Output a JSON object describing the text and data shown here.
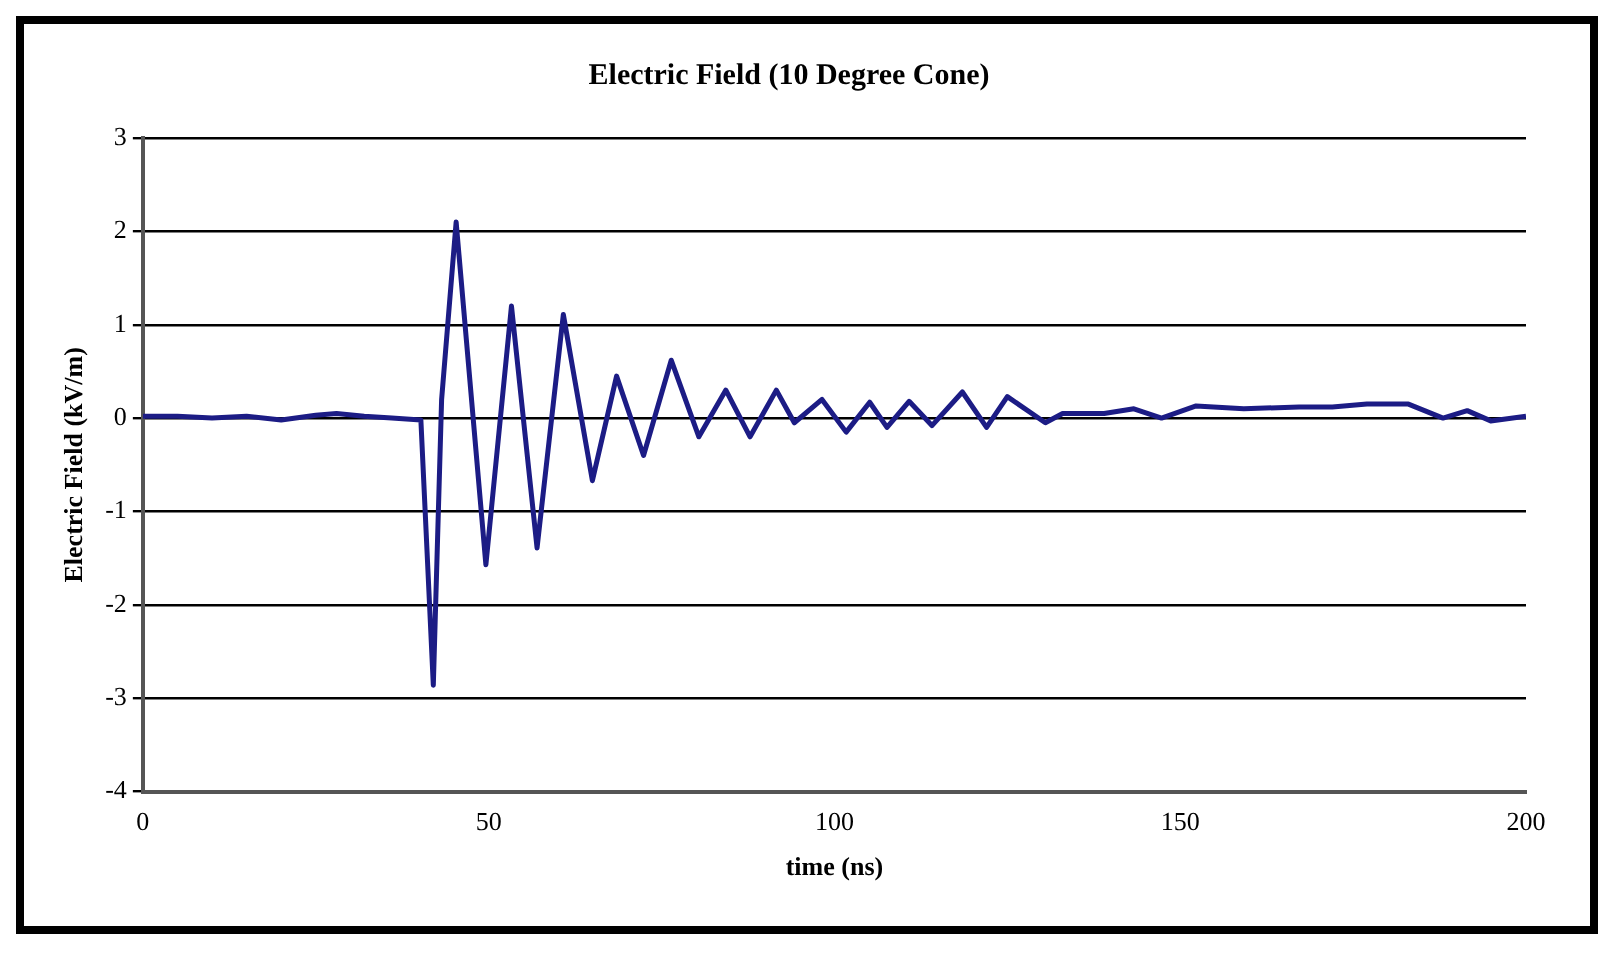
{
  "chart_data": {
    "type": "line",
    "title": "Electric Field (10 Degree Cone)",
    "xlabel": "time (ns)",
    "ylabel": "Electric Field (kV/m)",
    "x": [
      0,
      5,
      10,
      15,
      20,
      25,
      28,
      32,
      36,
      40.2,
      42.0,
      43.2,
      45.3,
      49.6,
      53.3,
      57.0,
      60.8,
      65.0,
      68.5,
      72.4,
      76.4,
      80.4,
      84.3,
      87.8,
      91.6,
      94.2,
      98.2,
      101.7,
      105.1,
      107.6,
      110.8,
      114.1,
      118.5,
      122,
      125,
      130.5,
      133,
      139,
      143.3,
      147.3,
      152.3,
      159.2,
      167.2,
      172,
      177,
      183,
      188,
      191.5,
      194.9,
      200
    ],
    "series": [
      {
        "color": "#1c1c85",
        "values": [
          0.02,
          0.02,
          0,
          0.02,
          -0.02,
          0.03,
          0.05,
          0.02,
          0,
          -0.02,
          -2.86,
          0.2,
          2.1,
          -1.57,
          1.2,
          -1.39,
          1.11,
          -0.67,
          0.45,
          -0.4,
          0.62,
          -0.2,
          0.3,
          -0.2,
          0.3,
          -0.05,
          0.2,
          -0.15,
          0.17,
          -0.1,
          0.18,
          -0.08,
          0.28,
          -0.1,
          0.23,
          -0.05,
          0.05,
          0.05,
          0.1,
          0,
          0.13,
          0.1,
          0.12,
          0.12,
          0.15,
          0.15,
          0,
          0.08,
          -0.03,
          0.02
        ]
      }
    ],
    "xlim": [
      0,
      200
    ],
    "xticks": [
      0,
      50,
      100,
      150,
      200
    ],
    "ylim": [
      -4,
      3
    ],
    "yticks": [
      -4,
      -3,
      -2,
      -1,
      0,
      1,
      2,
      3
    ],
    "grid": "y",
    "legend": false,
    "marker": "none",
    "line_style": "solid"
  }
}
